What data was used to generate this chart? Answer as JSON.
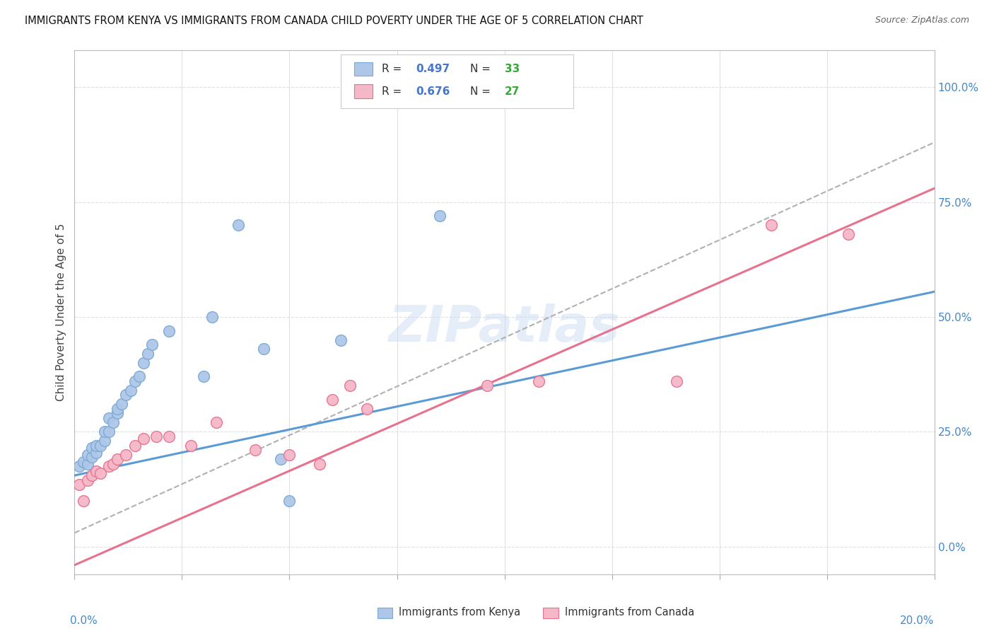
{
  "title": "IMMIGRANTS FROM KENYA VS IMMIGRANTS FROM CANADA CHILD POVERTY UNDER THE AGE OF 5 CORRELATION CHART",
  "source": "Source: ZipAtlas.com",
  "ylabel": "Child Poverty Under the Age of 5",
  "ylabel_right_ticks": [
    "0.0%",
    "25.0%",
    "50.0%",
    "75.0%",
    "100.0%"
  ],
  "ylabel_right_vals": [
    0.0,
    0.25,
    0.5,
    0.75,
    1.0
  ],
  "x_min": 0.0,
  "x_max": 0.2,
  "y_min": -0.06,
  "y_max": 1.08,
  "kenya_color": "#aec6e8",
  "canada_color": "#f5b8c8",
  "kenya_edge_color": "#7baad4",
  "canada_edge_color": "#e8728e",
  "kenya_line_color": "#5b9bd5",
  "canada_line_color": "#e8728e",
  "gray_dash_color": "#b0b0b0",
  "watermark": "ZIPatlas",
  "kenya_scatter_x": [
    0.001,
    0.002,
    0.003,
    0.003,
    0.004,
    0.004,
    0.005,
    0.005,
    0.006,
    0.007,
    0.007,
    0.008,
    0.008,
    0.009,
    0.01,
    0.01,
    0.011,
    0.012,
    0.013,
    0.014,
    0.015,
    0.016,
    0.017,
    0.018,
    0.022,
    0.03,
    0.032,
    0.038,
    0.044,
    0.048,
    0.05,
    0.062,
    0.085
  ],
  "kenya_scatter_y": [
    0.175,
    0.185,
    0.18,
    0.2,
    0.195,
    0.215,
    0.205,
    0.22,
    0.22,
    0.23,
    0.25,
    0.25,
    0.28,
    0.27,
    0.29,
    0.3,
    0.31,
    0.33,
    0.34,
    0.36,
    0.37,
    0.4,
    0.42,
    0.44,
    0.47,
    0.37,
    0.5,
    0.7,
    0.43,
    0.19,
    0.1,
    0.45,
    0.72
  ],
  "canada_scatter_x": [
    0.001,
    0.002,
    0.003,
    0.004,
    0.005,
    0.006,
    0.008,
    0.009,
    0.01,
    0.012,
    0.014,
    0.016,
    0.019,
    0.022,
    0.027,
    0.033,
    0.042,
    0.05,
    0.057,
    0.06,
    0.064,
    0.068,
    0.096,
    0.108,
    0.14,
    0.162,
    0.18
  ],
  "canada_scatter_y": [
    0.135,
    0.1,
    0.145,
    0.155,
    0.165,
    0.16,
    0.175,
    0.18,
    0.19,
    0.2,
    0.22,
    0.235,
    0.24,
    0.24,
    0.22,
    0.27,
    0.21,
    0.2,
    0.18,
    0.32,
    0.35,
    0.3,
    0.35,
    0.36,
    0.36,
    0.7,
    0.68
  ],
  "kenya_line_x0": 0.0,
  "kenya_line_y0": 0.155,
  "kenya_line_x1": 0.2,
  "kenya_line_y1": 0.555,
  "canada_line_x0": 0.0,
  "canada_line_y0": -0.04,
  "canada_line_x1": 0.2,
  "canada_line_y1": 0.78,
  "gray_line_x0": 0.0,
  "gray_line_y0": 0.03,
  "gray_line_x1": 0.2,
  "gray_line_y1": 0.88,
  "grid_color": "#e0e0e0",
  "bg_color": "#ffffff",
  "legend_R_color": "#4477cc",
  "legend_N_color": "#33aa33"
}
